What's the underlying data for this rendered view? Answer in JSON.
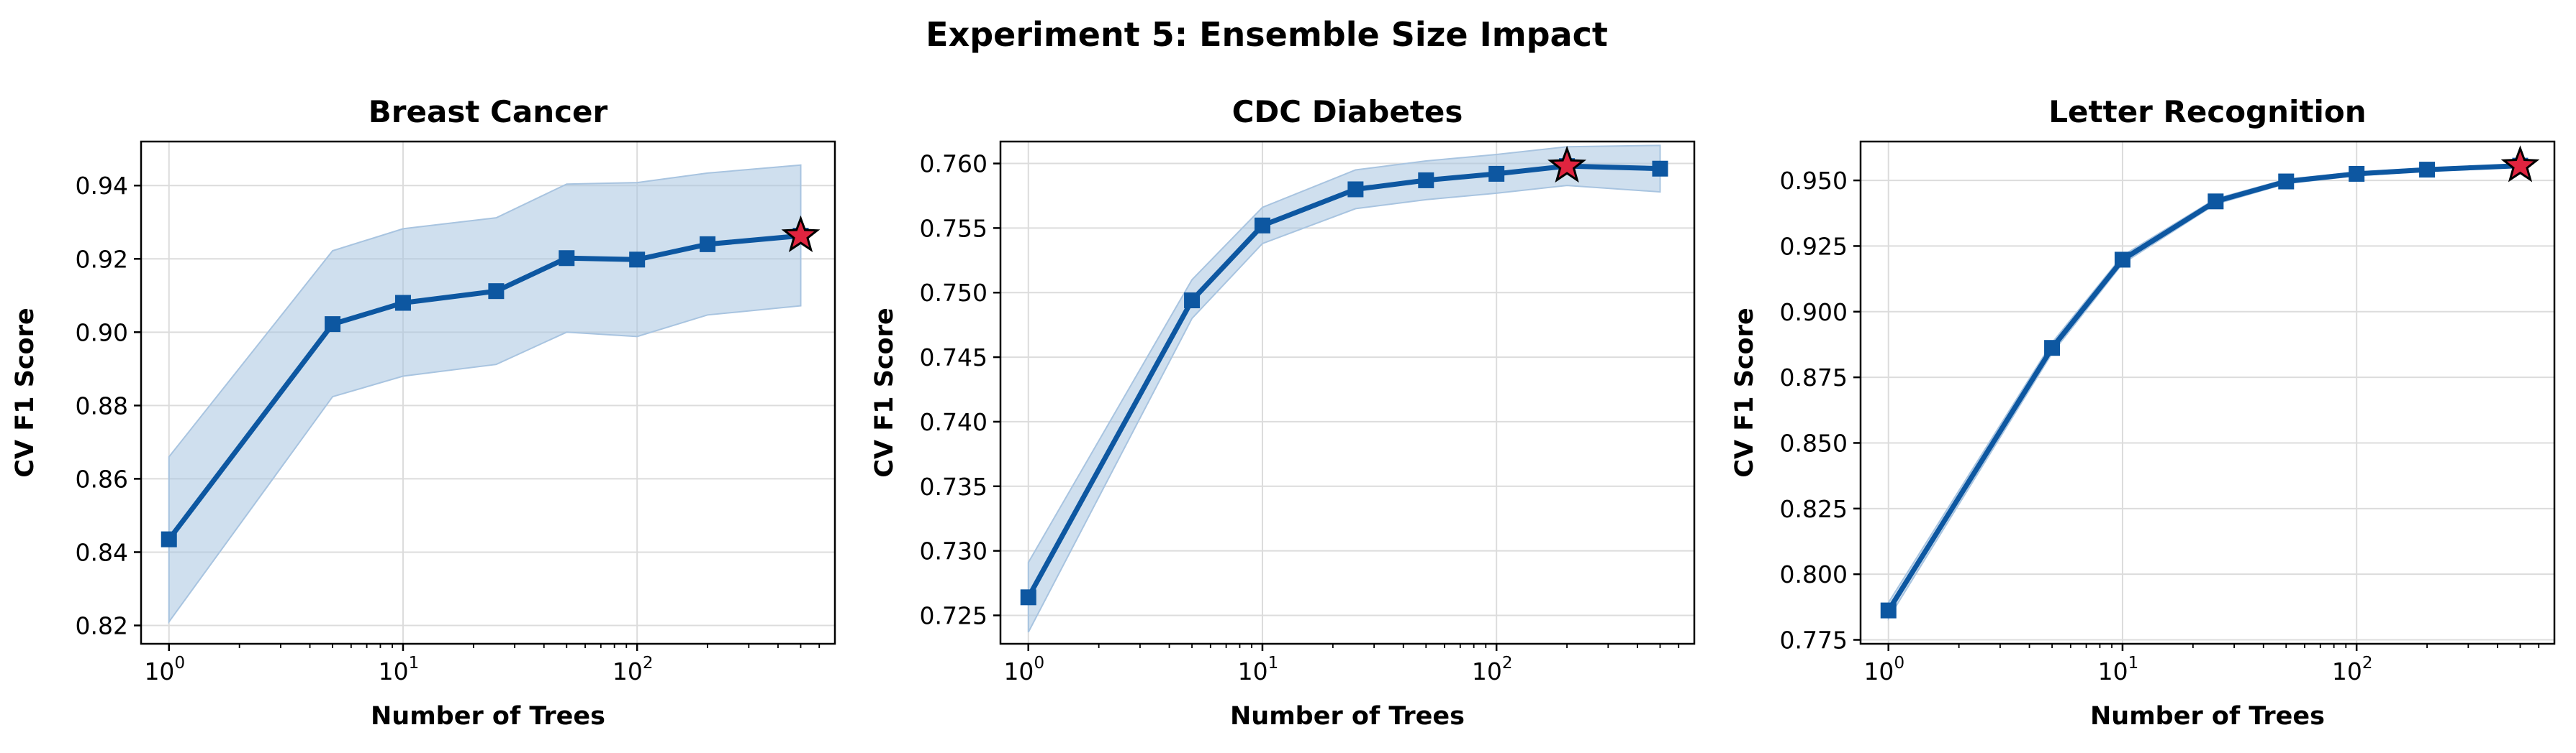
{
  "figure_title": "Experiment 5: Ensemble Size Impact",
  "colors": {
    "line": "#0d57a1",
    "band": "#a8c4e0",
    "grid": "#dcdcdc",
    "best_marker": "#e0243f"
  },
  "chart_data": [
    {
      "type": "line",
      "title": "Breast Cancer",
      "xlabel": "Number of Trees",
      "ylabel": "CV F1 Score",
      "xscale": "log",
      "x": [
        1,
        5,
        10,
        25,
        50,
        100,
        200,
        500
      ],
      "series": [
        {
          "values": [
            0.8435,
            0.9022,
            0.908,
            0.9112,
            0.9202,
            0.9198,
            0.924,
            0.9263
          ],
          "lower": [
            0.821,
            0.8824,
            0.888,
            0.8912,
            0.9,
            0.8988,
            0.9047,
            0.9072
          ],
          "upper": [
            0.866,
            0.9222,
            0.9282,
            0.9312,
            0.9404,
            0.9408,
            0.9434,
            0.9456
          ]
        }
      ],
      "best_index": 7,
      "xlim": [
        0.76,
        700
      ],
      "ylim": [
        0.815,
        0.952
      ],
      "yticks": [
        0.82,
        0.84,
        0.86,
        0.88,
        0.9,
        0.92,
        0.94
      ],
      "ytick_labels": [
        "0.82",
        "0.84",
        "0.86",
        "0.88",
        "0.90",
        "0.92",
        "0.94"
      ],
      "xtick_labels": [
        "10",
        "10",
        "10"
      ],
      "xtick_exponents": [
        "0",
        "1",
        "2"
      ],
      "grid": true
    },
    {
      "type": "line",
      "title": "CDC Diabetes",
      "xlabel": "Number of Trees",
      "ylabel": "CV F1 Score",
      "xscale": "log",
      "x": [
        1,
        5,
        10,
        25,
        50,
        100,
        200,
        500
      ],
      "series": [
        {
          "values": [
            0.7264,
            0.7494,
            0.7552,
            0.758,
            0.7587,
            0.7592,
            0.7598,
            0.7596
          ],
          "lower": [
            0.7237,
            0.748,
            0.7538,
            0.7565,
            0.7572,
            0.7577,
            0.7583,
            0.7578
          ],
          "upper": [
            0.7291,
            0.751,
            0.7566,
            0.7595,
            0.7602,
            0.7607,
            0.7613,
            0.7614
          ]
        }
      ],
      "best_index": 6,
      "xlim": [
        0.76,
        700
      ],
      "ylim": [
        0.7228,
        0.7617
      ],
      "yticks": [
        0.725,
        0.73,
        0.735,
        0.74,
        0.745,
        0.75,
        0.755,
        0.76
      ],
      "ytick_labels": [
        "0.725",
        "0.730",
        "0.735",
        "0.740",
        "0.745",
        "0.750",
        "0.755",
        "0.760"
      ],
      "xtick_labels": [
        "10",
        "10",
        "10"
      ],
      "xtick_exponents": [
        "0",
        "1",
        "2"
      ],
      "grid": true
    },
    {
      "type": "line",
      "title": "Letter Recognition",
      "xlabel": "Number of Trees",
      "ylabel": "CV F1 Score",
      "xscale": "log",
      "x": [
        1,
        5,
        10,
        25,
        50,
        100,
        200,
        500
      ],
      "series": [
        {
          "values": [
            0.7862,
            0.8862,
            0.9198,
            0.942,
            0.9496,
            0.9525,
            0.9541,
            0.9556
          ],
          "lower": [
            0.7832,
            0.8842,
            0.9183,
            0.941,
            0.9488,
            0.9518,
            0.9535,
            0.955
          ],
          "upper": [
            0.7892,
            0.8882,
            0.9213,
            0.943,
            0.9504,
            0.9532,
            0.9547,
            0.9562
          ]
        }
      ],
      "best_index": 7,
      "xlim": [
        0.76,
        700
      ],
      "ylim": [
        0.7735,
        0.9648
      ],
      "yticks": [
        0.775,
        0.8,
        0.825,
        0.85,
        0.875,
        0.9,
        0.925,
        0.95
      ],
      "ytick_labels": [
        "0.775",
        "0.800",
        "0.825",
        "0.850",
        "0.875",
        "0.900",
        "0.925",
        "0.950"
      ],
      "xtick_labels": [
        "10",
        "10",
        "10"
      ],
      "xtick_exponents": [
        "0",
        "1",
        "2"
      ],
      "grid": true
    }
  ]
}
